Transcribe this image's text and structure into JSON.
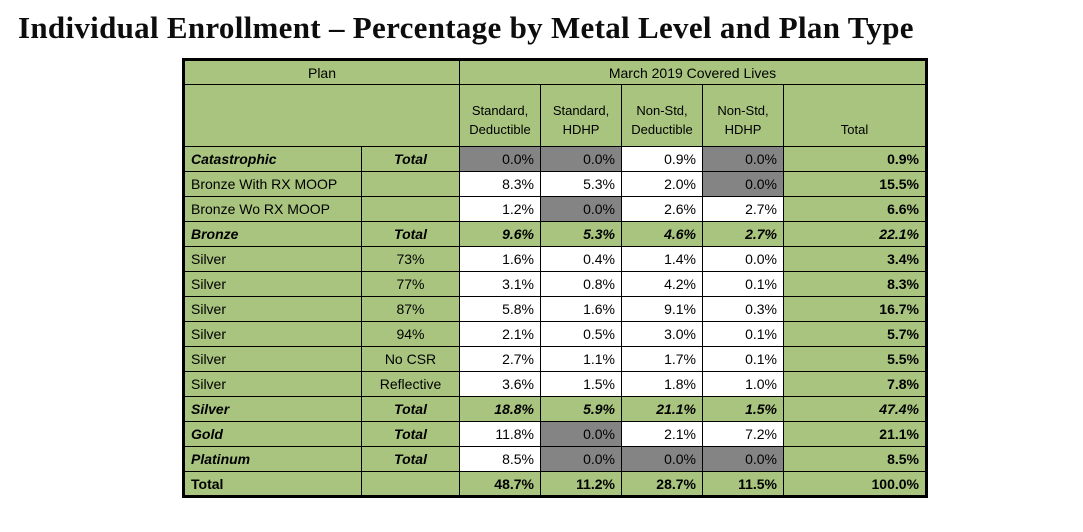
{
  "title": "Individual Enrollment – Percentage by Metal Level and Plan Type",
  "colors": {
    "green": "#a8c47e",
    "gray": "#848484"
  },
  "table": {
    "header": {
      "plan": "Plan",
      "group": "March 2019 Covered Lives",
      "columns": [
        "Standard,\nDeductible",
        "Standard,\nHDHP",
        "Non-Std,\nDeductible",
        "Non-Std,\nHDHP",
        "Total"
      ]
    },
    "rows": [
      {
        "plan": "Catastrophic",
        "sub": "Total",
        "ls": "bi",
        "cells": [
          {
            "v": "0.0%",
            "bg": "gray",
            "s": ""
          },
          {
            "v": "0.0%",
            "bg": "gray",
            "s": ""
          },
          {
            "v": "0.9%",
            "bg": "white",
            "s": ""
          },
          {
            "v": "0.0%",
            "bg": "gray",
            "s": ""
          },
          {
            "v": "0.9%",
            "bg": "green",
            "s": "b"
          }
        ]
      },
      {
        "plan": "Bronze With RX MOOP",
        "sub": "",
        "ls": "",
        "cells": [
          {
            "v": "8.3%",
            "bg": "white",
            "s": ""
          },
          {
            "v": "5.3%",
            "bg": "white",
            "s": ""
          },
          {
            "v": "2.0%",
            "bg": "white",
            "s": ""
          },
          {
            "v": "0.0%",
            "bg": "gray",
            "s": ""
          },
          {
            "v": "15.5%",
            "bg": "green",
            "s": "b"
          }
        ]
      },
      {
        "plan": "Bronze Wo RX MOOP",
        "sub": "",
        "ls": "",
        "cells": [
          {
            "v": "1.2%",
            "bg": "white",
            "s": ""
          },
          {
            "v": "0.0%",
            "bg": "gray",
            "s": ""
          },
          {
            "v": "2.6%",
            "bg": "white",
            "s": ""
          },
          {
            "v": "2.7%",
            "bg": "white",
            "s": ""
          },
          {
            "v": "6.6%",
            "bg": "green",
            "s": "b"
          }
        ]
      },
      {
        "plan": "Bronze",
        "sub": "Total",
        "ls": "bi",
        "cells": [
          {
            "v": "9.6%",
            "bg": "green",
            "s": "bi"
          },
          {
            "v": "5.3%",
            "bg": "green",
            "s": "bi"
          },
          {
            "v": "4.6%",
            "bg": "green",
            "s": "bi"
          },
          {
            "v": "2.7%",
            "bg": "green",
            "s": "bi"
          },
          {
            "v": "22.1%",
            "bg": "green",
            "s": "bi"
          }
        ]
      },
      {
        "plan": "Silver",
        "sub": "73%",
        "ls": "",
        "cells": [
          {
            "v": "1.6%",
            "bg": "white",
            "s": ""
          },
          {
            "v": "0.4%",
            "bg": "white",
            "s": ""
          },
          {
            "v": "1.4%",
            "bg": "white",
            "s": ""
          },
          {
            "v": "0.0%",
            "bg": "white",
            "s": ""
          },
          {
            "v": "3.4%",
            "bg": "green",
            "s": "b"
          }
        ]
      },
      {
        "plan": "Silver",
        "sub": "77%",
        "ls": "",
        "cells": [
          {
            "v": "3.1%",
            "bg": "white",
            "s": ""
          },
          {
            "v": "0.8%",
            "bg": "white",
            "s": ""
          },
          {
            "v": "4.2%",
            "bg": "white",
            "s": ""
          },
          {
            "v": "0.1%",
            "bg": "white",
            "s": ""
          },
          {
            "v": "8.3%",
            "bg": "green",
            "s": "b"
          }
        ]
      },
      {
        "plan": "Silver",
        "sub": "87%",
        "ls": "",
        "cells": [
          {
            "v": "5.8%",
            "bg": "white",
            "s": ""
          },
          {
            "v": "1.6%",
            "bg": "white",
            "s": ""
          },
          {
            "v": "9.1%",
            "bg": "white",
            "s": ""
          },
          {
            "v": "0.3%",
            "bg": "white",
            "s": ""
          },
          {
            "v": "16.7%",
            "bg": "green",
            "s": "b"
          }
        ]
      },
      {
        "plan": "Silver",
        "sub": "94%",
        "ls": "",
        "cells": [
          {
            "v": "2.1%",
            "bg": "white",
            "s": ""
          },
          {
            "v": "0.5%",
            "bg": "white",
            "s": ""
          },
          {
            "v": "3.0%",
            "bg": "white",
            "s": ""
          },
          {
            "v": "0.1%",
            "bg": "white",
            "s": ""
          },
          {
            "v": "5.7%",
            "bg": "green",
            "s": "b"
          }
        ]
      },
      {
        "plan": "Silver",
        "sub": "No CSR",
        "ls": "",
        "cells": [
          {
            "v": "2.7%",
            "bg": "white",
            "s": ""
          },
          {
            "v": "1.1%",
            "bg": "white",
            "s": ""
          },
          {
            "v": "1.7%",
            "bg": "white",
            "s": ""
          },
          {
            "v": "0.1%",
            "bg": "white",
            "s": ""
          },
          {
            "v": "5.5%",
            "bg": "green",
            "s": "b"
          }
        ]
      },
      {
        "plan": "Silver",
        "sub": "Reflective",
        "ls": "",
        "cells": [
          {
            "v": "3.6%",
            "bg": "white",
            "s": ""
          },
          {
            "v": "1.5%",
            "bg": "white",
            "s": ""
          },
          {
            "v": "1.8%",
            "bg": "white",
            "s": ""
          },
          {
            "v": "1.0%",
            "bg": "white",
            "s": ""
          },
          {
            "v": "7.8%",
            "bg": "green",
            "s": "b"
          }
        ]
      },
      {
        "plan": "Silver",
        "sub": "Total",
        "ls": "bi",
        "cells": [
          {
            "v": "18.8%",
            "bg": "green",
            "s": "bi"
          },
          {
            "v": "5.9%",
            "bg": "green",
            "s": "bi"
          },
          {
            "v": "21.1%",
            "bg": "green",
            "s": "bi"
          },
          {
            "v": "1.5%",
            "bg": "green",
            "s": "bi"
          },
          {
            "v": "47.4%",
            "bg": "green",
            "s": "bi"
          }
        ]
      },
      {
        "plan": "Gold",
        "sub": "Total",
        "ls": "bi",
        "cells": [
          {
            "v": "11.8%",
            "bg": "white",
            "s": ""
          },
          {
            "v": "0.0%",
            "bg": "gray",
            "s": ""
          },
          {
            "v": "2.1%",
            "bg": "white",
            "s": ""
          },
          {
            "v": "7.2%",
            "bg": "white",
            "s": ""
          },
          {
            "v": "21.1%",
            "bg": "green",
            "s": "b"
          }
        ]
      },
      {
        "plan": "Platinum",
        "sub": "Total",
        "ls": "bi",
        "cells": [
          {
            "v": "8.5%",
            "bg": "white",
            "s": ""
          },
          {
            "v": "0.0%",
            "bg": "gray",
            "s": ""
          },
          {
            "v": "0.0%",
            "bg": "gray",
            "s": ""
          },
          {
            "v": "0.0%",
            "bg": "gray",
            "s": ""
          },
          {
            "v": "8.5%",
            "bg": "green",
            "s": "b"
          }
        ]
      },
      {
        "plan": "Total",
        "sub": "",
        "ls": "b",
        "cells": [
          {
            "v": "48.7%",
            "bg": "green",
            "s": "b"
          },
          {
            "v": "11.2%",
            "bg": "green",
            "s": "b"
          },
          {
            "v": "28.7%",
            "bg": "green",
            "s": "b"
          },
          {
            "v": "11.5%",
            "bg": "green",
            "s": "b"
          },
          {
            "v": "100.0%",
            "bg": "green",
            "s": "b"
          }
        ]
      }
    ]
  }
}
